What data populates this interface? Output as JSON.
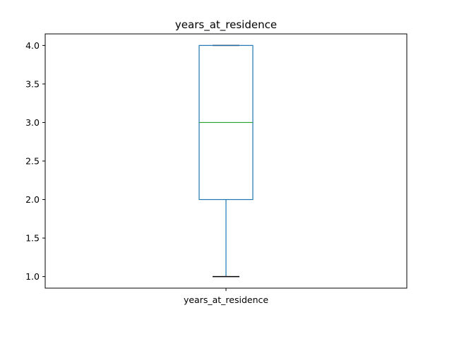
{
  "chart_data": {
    "type": "box",
    "title": "years_at_residence",
    "xlabel": "",
    "ylabel": "",
    "categories": [
      "years_at_residence"
    ],
    "boxes": [
      {
        "label": "years_at_residence",
        "whisker_low": 1.0,
        "q1": 2.0,
        "median": 3.0,
        "q3": 4.0,
        "whisker_high": 4.0
      }
    ],
    "ylim": [
      0.85,
      4.15
    ],
    "yticks": [
      1.0,
      1.5,
      2.0,
      2.5,
      3.0,
      3.5,
      4.0
    ],
    "ytick_labels": [
      "1.0",
      "1.5",
      "2.0",
      "2.5",
      "3.0",
      "3.5",
      "4.0"
    ],
    "grid": false,
    "colors": {
      "box": "#1f77b4",
      "whisker": "#1f77b4",
      "median": "#2ca02c",
      "cap": "#000000",
      "axes": "#000000"
    }
  }
}
